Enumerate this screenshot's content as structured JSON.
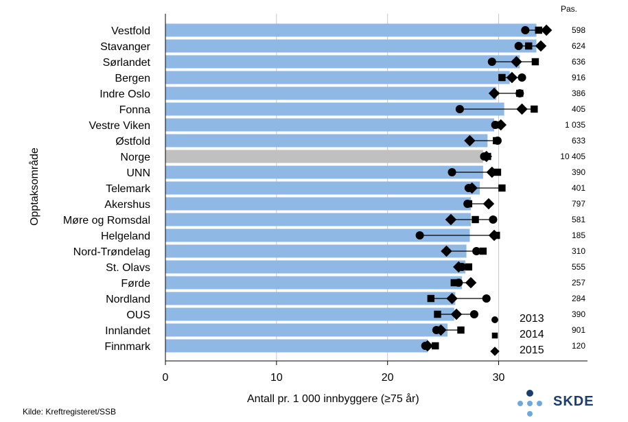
{
  "chart_data": {
    "type": "bar",
    "orientation": "horizontal",
    "xlabel": "Antall pr. 1 000 innbyggere (≥75 år)",
    "ylabel": "Opptaksområde",
    "xlim": [
      0,
      38
    ],
    "xticks": [
      0,
      10,
      20,
      30
    ],
    "grid": true,
    "legend_position": "bottom-right",
    "pas_header": "Pas.",
    "source": "Kilde: Kreftregisteret/SSB",
    "categories": [
      "Vestfold",
      "Stavanger",
      "Sørlandet",
      "Bergen",
      "Indre Oslo",
      "Fonna",
      "Vestre Viken",
      "Østfold",
      "Norge",
      "UNN",
      "Telemark",
      "Akershus",
      "Møre og Romsdal",
      "Helgeland",
      "Nord-Trøndelag",
      "St. Olavs",
      "Førde",
      "Nordland",
      "OUS",
      "Innlandet",
      "Finnmark"
    ],
    "bar_values": [
      33.4,
      33.4,
      31.9,
      31.0,
      29.8,
      30.5,
      29.6,
      29.0,
      28.6,
      28.6,
      28.3,
      27.5,
      27.5,
      27.4,
      27.1,
      27.0,
      26.7,
      26.1,
      26.0,
      25.4,
      23.6
    ],
    "series": [
      {
        "name": "2013",
        "marker": "circle",
        "values": [
          32.4,
          31.8,
          29.4,
          32.1,
          31.9,
          26.5,
          29.7,
          29.9,
          28.7,
          25.8,
          27.3,
          27.2,
          29.5,
          22.9,
          28.0,
          26.7,
          26.4,
          28.9,
          27.8,
          24.4,
          23.4
        ]
      },
      {
        "name": "2014",
        "marker": "square",
        "values": [
          33.6,
          32.7,
          33.3,
          30.3,
          31.9,
          33.2,
          29.8,
          29.8,
          29.0,
          29.9,
          30.3,
          27.3,
          27.9,
          29.8,
          28.6,
          27.3,
          26.0,
          23.9,
          24.5,
          26.6,
          24.3
        ]
      },
      {
        "name": "2015",
        "marker": "diamond",
        "values": [
          34.3,
          33.8,
          31.6,
          31.2,
          29.6,
          32.1,
          30.2,
          27.4,
          28.9,
          29.4,
          27.6,
          29.1,
          25.7,
          29.6,
          25.3,
          26.4,
          27.5,
          25.8,
          26.2,
          24.8,
          23.6
        ]
      }
    ],
    "pas": [
      "598",
      "624",
      "636",
      "916",
      "386",
      "405",
      "1 035",
      "633",
      "10 405",
      "390",
      "401",
      "797",
      "581",
      "185",
      "310",
      "555",
      "257",
      "284",
      "390",
      "901",
      "120"
    ],
    "highlight_category": "Norge",
    "colors": {
      "bar": "#8fb8e4",
      "highlight_bar": "#c0c0c0",
      "marker": "#000000",
      "grid": "#c8c8c8"
    }
  },
  "logo": {
    "text": "SKDE",
    "dot_colors": [
      "#1a3d6d",
      "#6fa8dc"
    ]
  }
}
